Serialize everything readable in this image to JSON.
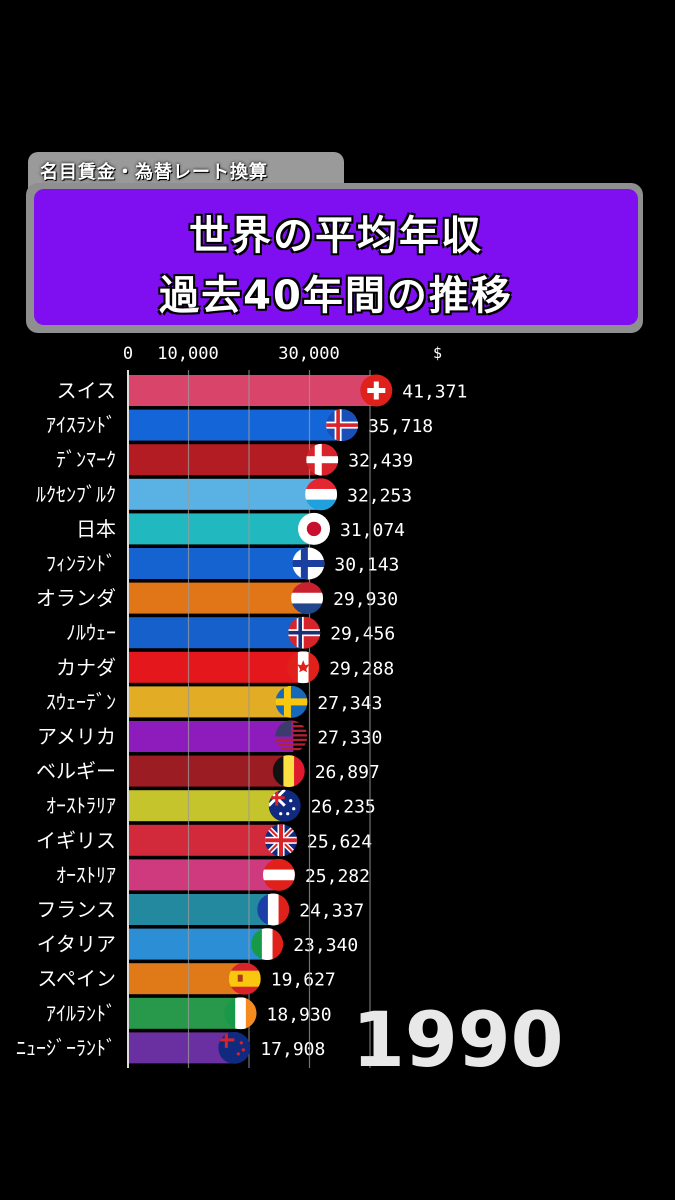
{
  "header": {
    "subtitle": "名目賃金・為替レート換算",
    "title_line1": "世界の平均年収",
    "title_line2": "過去40年間の推移"
  },
  "chart_data": {
    "type": "bar",
    "orientation": "horizontal",
    "unit": "$",
    "year": "1990",
    "x_ticks": [
      "0",
      "10,000",
      "30,000"
    ],
    "x_tick_values": [
      0,
      10000,
      30000
    ],
    "grid": true,
    "categories": [
      "スイス",
      "ｱｲｽﾗﾝﾄﾞ",
      "ﾃﾞﾝﾏｰｸ",
      "ﾙｸｾﾝﾌﾞﾙｸ",
      "日本",
      "ﾌｨﾝﾗﾝﾄﾞ",
      "オランダ",
      "ﾉﾙｳｪｰ",
      "カナダ",
      "ｽｳｪｰﾃﾞﾝ",
      "アメリカ",
      "ベルギー",
      "ｵｰｽﾄﾗﾘｱ",
      "イギリス",
      "ｵｰｽﾄﾘｱ",
      "フランス",
      "イタリア",
      "スペイン",
      "ｱｲﾙﾗﾝﾄﾞ",
      "ﾆｭｰｼﾞｰﾗﾝﾄﾞ"
    ],
    "values": [
      41371,
      35718,
      32439,
      32253,
      31074,
      30143,
      29930,
      29456,
      29288,
      27343,
      27330,
      26897,
      26235,
      25624,
      25282,
      24337,
      23340,
      19627,
      18930,
      17908
    ],
    "value_labels": [
      "41,371",
      "35,718",
      "32,439",
      "32,253",
      "31,074",
      "30,143",
      "29,930",
      "29,456",
      "29,288",
      "27,343",
      "27,330",
      "26,897",
      "26,235",
      "25,624",
      "25,282",
      "24,337",
      "23,340",
      "19,627",
      "18,930",
      "17,908"
    ],
    "bar_colors": [
      "#d9446a",
      "#1466d8",
      "#b31c22",
      "#5ab2e4",
      "#22b8c0",
      "#1463d0",
      "#e07618",
      "#1660cc",
      "#e4181c",
      "#e2ac24",
      "#8e1cbc",
      "#9c1c24",
      "#c6c42c",
      "#d22a3a",
      "#cf3a7e",
      "#23899e",
      "#2c8fd6",
      "#e07a18",
      "#28984a",
      "#6a2fa0"
    ],
    "flags": [
      "swiss-flag-icon",
      "iceland-flag-icon",
      "denmark-flag-icon",
      "luxembourg-flag-icon",
      "japan-flag-icon",
      "finland-flag-icon",
      "netherlands-flag-icon",
      "norway-flag-icon",
      "canada-flag-icon",
      "sweden-flag-icon",
      "usa-flag-icon",
      "belgium-flag-icon",
      "australia-flag-icon",
      "uk-flag-icon",
      "austria-flag-icon",
      "france-flag-icon",
      "italy-flag-icon",
      "spain-flag-icon",
      "ireland-flag-icon",
      "new-zealand-flag-icon"
    ]
  }
}
